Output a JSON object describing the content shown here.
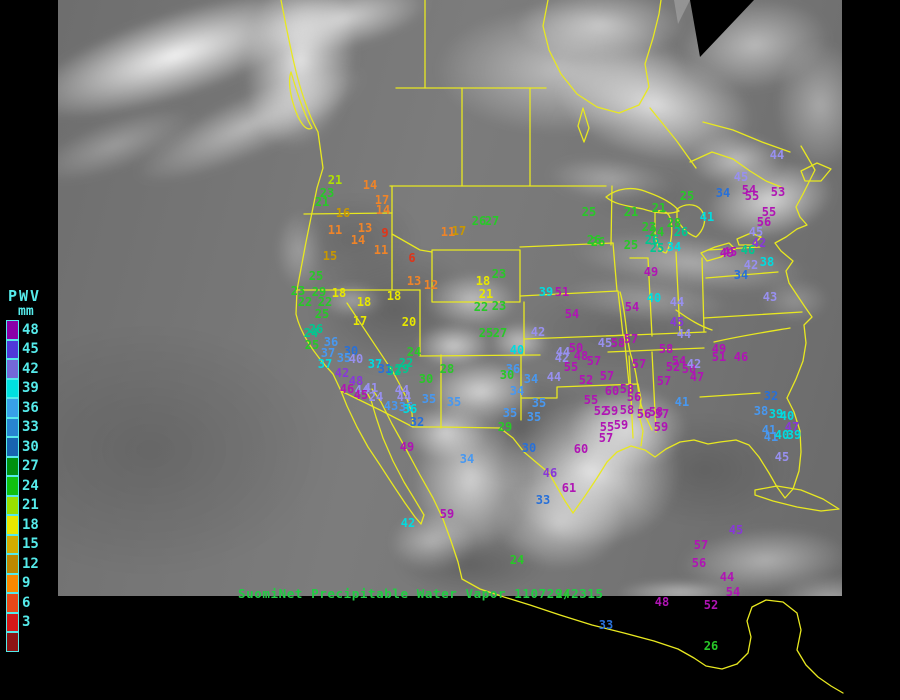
{
  "header": {
    "title": "SuomiNet Precipitable Water Vapor 110729/2315"
  },
  "legend": {
    "title": "PWV",
    "units": "mm",
    "text_color": "#55eaea",
    "entries": [
      {
        "label": "48",
        "color": "#8a00a8"
      },
      {
        "label": "45",
        "color": "#5038d8"
      },
      {
        "label": "42",
        "color": "#7468d8"
      },
      {
        "label": "39",
        "color": "#00e0e0"
      },
      {
        "label": "36",
        "color": "#38a0e8"
      },
      {
        "label": "33",
        "color": "#2884d0"
      },
      {
        "label": "30",
        "color": "#1864b0"
      },
      {
        "label": "27",
        "color": "#009010"
      },
      {
        "label": "24",
        "color": "#10c010"
      },
      {
        "label": "21",
        "color": "#98e000"
      },
      {
        "label": "18",
        "color": "#e8e800"
      },
      {
        "label": "15",
        "color": "#d0ac00"
      },
      {
        "label": "12",
        "color": "#bc8800"
      },
      {
        "label": "9",
        "color": "#f88800"
      },
      {
        "label": "6",
        "color": "#e84818"
      },
      {
        "label": "3",
        "color": "#d41818"
      },
      {
        "label": "",
        "color": "#8c1414"
      }
    ]
  },
  "map": {
    "outline_color": "#e8e820",
    "title_color": "#22cc44",
    "palette": {
      "rd": "#e03418",
      "or": "#f08428",
      "go": "#c89800",
      "yl": "#e8e800",
      "yg": "#b0e000",
      "gr": "#28c828",
      "tl": "#00c890",
      "bl": "#4898f0",
      "mb": "#2870d8",
      "cy": "#00dce0",
      "lv": "#9890f0",
      "pu": "#8838d8",
      "mg": "#b014b4"
    },
    "stations": [
      [
        "21",
        335,
        180,
        "yg"
      ],
      [
        "23",
        327,
        193,
        "gr"
      ],
      [
        "21",
        322,
        202,
        "gr"
      ],
      [
        "14",
        370,
        185,
        "or"
      ],
      [
        "17",
        382,
        200,
        "or"
      ],
      [
        "14",
        383,
        210,
        "or"
      ],
      [
        "16",
        343,
        213,
        "go"
      ],
      [
        "11",
        335,
        230,
        "or"
      ],
      [
        "13",
        365,
        228,
        "or"
      ],
      [
        "9",
        385,
        233,
        "rd"
      ],
      [
        "14",
        358,
        240,
        "or"
      ],
      [
        "11",
        381,
        250,
        "or"
      ],
      [
        "6",
        412,
        258,
        "rd"
      ],
      [
        "15",
        330,
        256,
        "go"
      ],
      [
        "11",
        448,
        232,
        "or"
      ],
      [
        "17",
        459,
        231,
        "go"
      ],
      [
        "13",
        414,
        281,
        "or"
      ],
      [
        "12",
        431,
        285,
        "or"
      ],
      [
        "25",
        316,
        276,
        "gr"
      ],
      [
        "23",
        298,
        291,
        "gr"
      ],
      [
        "29",
        319,
        292,
        "gr"
      ],
      [
        "18",
        339,
        293,
        "yl"
      ],
      [
        "22",
        305,
        302,
        "gr"
      ],
      [
        "22",
        325,
        302,
        "gr"
      ],
      [
        "18",
        364,
        302,
        "yl"
      ],
      [
        "25",
        322,
        314,
        "gr"
      ],
      [
        "17",
        360,
        321,
        "yl"
      ],
      [
        "20",
        409,
        322,
        "yl"
      ],
      [
        "18",
        394,
        296,
        "yl"
      ],
      [
        "26",
        316,
        329,
        "tl"
      ],
      [
        "24",
        311,
        333,
        "tl"
      ],
      [
        "25",
        312,
        345,
        "gr"
      ],
      [
        "36",
        331,
        342,
        "bl"
      ],
      [
        "37",
        328,
        353,
        "bl"
      ],
      [
        "30",
        351,
        351,
        "mb"
      ],
      [
        "35",
        344,
        358,
        "bl"
      ],
      [
        "40",
        356,
        359,
        "lv"
      ],
      [
        "37",
        325,
        364,
        "cy"
      ],
      [
        "37",
        375,
        364,
        "cy"
      ],
      [
        "31",
        385,
        369,
        "mb"
      ],
      [
        "32",
        394,
        371,
        "tl"
      ],
      [
        "42",
        342,
        373,
        "pu"
      ],
      [
        "48",
        356,
        381,
        "pu"
      ],
      [
        "46",
        347,
        389,
        "mg"
      ],
      [
        "44",
        362,
        390,
        "lv"
      ],
      [
        "41",
        371,
        388,
        "lv"
      ],
      [
        "45",
        361,
        395,
        "mg"
      ],
      [
        "24",
        376,
        397,
        "lv"
      ],
      [
        "44",
        402,
        390,
        "lv"
      ],
      [
        "44",
        404,
        397,
        "lv"
      ],
      [
        "43",
        391,
        406,
        "bl"
      ],
      [
        "36",
        406,
        407,
        "bl"
      ],
      [
        "24",
        414,
        352,
        "gr"
      ],
      [
        "22",
        406,
        363,
        "tl"
      ],
      [
        "29",
        402,
        369,
        "tl"
      ],
      [
        "26",
        479,
        221,
        "gr"
      ],
      [
        "27",
        492,
        221,
        "gr"
      ],
      [
        "25",
        589,
        212,
        "gr"
      ],
      [
        "26",
        598,
        242,
        "gr"
      ],
      [
        "23",
        499,
        274,
        "gr"
      ],
      [
        "18",
        483,
        281,
        "yl"
      ],
      [
        "21",
        486,
        294,
        "yl"
      ],
      [
        "22",
        481,
        307,
        "gr"
      ],
      [
        "23",
        499,
        306,
        "gr"
      ],
      [
        "39",
        546,
        292,
        "cy"
      ],
      [
        "51",
        562,
        292,
        "mg"
      ],
      [
        "54",
        572,
        314,
        "mg"
      ],
      [
        "25",
        486,
        333,
        "gr"
      ],
      [
        "27",
        500,
        333,
        "gr"
      ],
      [
        "42",
        538,
        332,
        "lv"
      ],
      [
        "40",
        517,
        350,
        "cy"
      ],
      [
        "28",
        447,
        369,
        "gr"
      ],
      [
        "30",
        426,
        379,
        "gr"
      ],
      [
        "36",
        513,
        369,
        "bl"
      ],
      [
        "30",
        507,
        375,
        "gr"
      ],
      [
        "34",
        531,
        379,
        "bl"
      ],
      [
        "34",
        517,
        391,
        "bl"
      ],
      [
        "44",
        554,
        377,
        "lv"
      ],
      [
        "35",
        429,
        399,
        "bl"
      ],
      [
        "35",
        454,
        402,
        "bl"
      ],
      [
        "36",
        410,
        409,
        "cy"
      ],
      [
        "32",
        417,
        422,
        "mb"
      ],
      [
        "35",
        510,
        413,
        "bl"
      ],
      [
        "35",
        534,
        417,
        "bl"
      ],
      [
        "29",
        505,
        427,
        "gr"
      ],
      [
        "49",
        407,
        447,
        "mg"
      ],
      [
        "30",
        529,
        448,
        "mb"
      ],
      [
        "35",
        539,
        403,
        "bl"
      ],
      [
        "34",
        467,
        459,
        "bl"
      ],
      [
        "46",
        550,
        473,
        "pu"
      ],
      [
        "61",
        569,
        488,
        "mg"
      ],
      [
        "33",
        543,
        500,
        "mb"
      ],
      [
        "59",
        447,
        514,
        "mg"
      ],
      [
        "42",
        408,
        523,
        "cy"
      ],
      [
        "24",
        517,
        560,
        "gr"
      ],
      [
        "33",
        606,
        625,
        "mb"
      ],
      [
        "26",
        711,
        646,
        "gr"
      ],
      [
        "52",
        711,
        605,
        "mg"
      ],
      [
        "48",
        662,
        602,
        "mg"
      ],
      [
        "54",
        733,
        592,
        "mg"
      ],
      [
        "44",
        727,
        577,
        "mg"
      ],
      [
        "56",
        699,
        563,
        "mg"
      ],
      [
        "57",
        701,
        545,
        "mg"
      ],
      [
        "45",
        736,
        530,
        "pu"
      ],
      [
        "24",
        563,
        594,
        "gr"
      ],
      [
        "44",
        563,
        352,
        "lv"
      ],
      [
        "42",
        562,
        358,
        "lv"
      ],
      [
        "50",
        576,
        348,
        "mg"
      ],
      [
        "48",
        581,
        356,
        "mg"
      ],
      [
        "45",
        605,
        343,
        "lv"
      ],
      [
        "58",
        618,
        343,
        "mg"
      ],
      [
        "57",
        631,
        339,
        "mg"
      ],
      [
        "57",
        594,
        361,
        "mg"
      ],
      [
        "55",
        571,
        367,
        "mg"
      ],
      [
        "52",
        586,
        380,
        "mg"
      ],
      [
        "57",
        607,
        376,
        "mg"
      ],
      [
        "57",
        639,
        364,
        "mg"
      ],
      [
        "58",
        666,
        349,
        "mg"
      ],
      [
        "54",
        679,
        361,
        "mg"
      ],
      [
        "52",
        673,
        367,
        "mg"
      ],
      [
        "50",
        689,
        369,
        "mg"
      ],
      [
        "42",
        694,
        364,
        "lv"
      ],
      [
        "47",
        697,
        377,
        "mg"
      ],
      [
        "57",
        664,
        381,
        "mg"
      ],
      [
        "44",
        684,
        334,
        "lv"
      ],
      [
        "49",
        719,
        349,
        "mg"
      ],
      [
        "51",
        719,
        357,
        "mg"
      ],
      [
        "60",
        612,
        391,
        "mg"
      ],
      [
        "58",
        627,
        389,
        "mg"
      ],
      [
        "55",
        591,
        400,
        "mg"
      ],
      [
        "56",
        634,
        397,
        "mg"
      ],
      [
        "52",
        601,
        411,
        "mg"
      ],
      [
        "59",
        611,
        411,
        "mg"
      ],
      [
        "58",
        627,
        410,
        "mg"
      ],
      [
        "56",
        644,
        414,
        "mg"
      ],
      [
        "58",
        656,
        412,
        "mg"
      ],
      [
        "57",
        662,
        414,
        "mg"
      ],
      [
        "55",
        607,
        427,
        "mg"
      ],
      [
        "59",
        621,
        425,
        "mg"
      ],
      [
        "59",
        661,
        427,
        "mg"
      ],
      [
        "57",
        606,
        438,
        "mg"
      ],
      [
        "60",
        581,
        449,
        "mg"
      ],
      [
        "41",
        682,
        402,
        "bl"
      ],
      [
        "25",
        687,
        196,
        "gr"
      ],
      [
        "34",
        723,
        193,
        "mb"
      ],
      [
        "21",
        631,
        212,
        "gr"
      ],
      [
        "21",
        659,
        208,
        "gr"
      ],
      [
        "41",
        707,
        217,
        "cy"
      ],
      [
        "23",
        649,
        227,
        "gr"
      ],
      [
        "28",
        674,
        223,
        "gr"
      ],
      [
        "24",
        657,
        232,
        "gr"
      ],
      [
        "26",
        681,
        232,
        "tl"
      ],
      [
        "26",
        594,
        240,
        "gr"
      ],
      [
        "26",
        652,
        240,
        "tl"
      ],
      [
        "25",
        631,
        245,
        "gr"
      ],
      [
        "25",
        657,
        248,
        "tl"
      ],
      [
        "34",
        674,
        247,
        "cy"
      ],
      [
        "49",
        727,
        253,
        "mg"
      ],
      [
        "49",
        651,
        272,
        "mg"
      ],
      [
        "34",
        741,
        275,
        "mb"
      ],
      [
        "42",
        751,
        265,
        "lv"
      ],
      [
        "40",
        654,
        298,
        "cy"
      ],
      [
        "44",
        677,
        302,
        "lv"
      ],
      [
        "54",
        632,
        307,
        "mg"
      ],
      [
        "45",
        677,
        322,
        "pu"
      ],
      [
        "54",
        749,
        190,
        "mg"
      ],
      [
        "55",
        752,
        196,
        "mg"
      ],
      [
        "53",
        778,
        192,
        "mg"
      ],
      [
        "55",
        769,
        212,
        "mg"
      ],
      [
        "56",
        764,
        222,
        "mg"
      ],
      [
        "45",
        756,
        232,
        "lv"
      ],
      [
        "42",
        759,
        243,
        "pu"
      ],
      [
        "46",
        748,
        250,
        "tl"
      ],
      [
        "45",
        730,
        252,
        "mg"
      ],
      [
        "38",
        767,
        262,
        "cy"
      ],
      [
        "44",
        777,
        155,
        "lv"
      ],
      [
        "45",
        741,
        177,
        "lv"
      ],
      [
        "43",
        770,
        297,
        "lv"
      ],
      [
        "46",
        741,
        357,
        "mg"
      ],
      [
        "32",
        771,
        396,
        "mb"
      ],
      [
        "38",
        761,
        411,
        "bl"
      ],
      [
        "39",
        776,
        414,
        "cy"
      ],
      [
        "40",
        787,
        416,
        "cy"
      ],
      [
        "47",
        792,
        427,
        "pu"
      ],
      [
        "41",
        769,
        430,
        "bl"
      ],
      [
        "41",
        771,
        437,
        "bl"
      ],
      [
        "40",
        782,
        435,
        "cy"
      ],
      [
        "39",
        794,
        435,
        "cy"
      ],
      [
        "45",
        782,
        457,
        "lv"
      ]
    ]
  }
}
